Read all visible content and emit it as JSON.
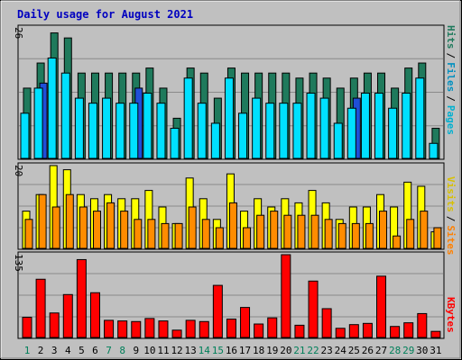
{
  "chart_data": [
    {
      "type": "bar",
      "title": "Daily usage for August 2021",
      "axis_max_label": "26",
      "ylim": [
        0,
        26
      ],
      "legend": [
        "Pages",
        "Files",
        "Hits"
      ],
      "legend_separator": "/",
      "categories": [
        "1",
        "2",
        "3",
        "4",
        "5",
        "6",
        "7",
        "8",
        "9",
        "10",
        "11",
        "12",
        "13",
        "14",
        "15",
        "16",
        "17",
        "18",
        "19",
        "20",
        "21",
        "22",
        "23",
        "24",
        "25",
        "26",
        "27",
        "28",
        "29",
        "30",
        "31"
      ],
      "weekend_days": [
        "1",
        "7",
        "8",
        "14",
        "15",
        "21",
        "22",
        "28",
        "29"
      ],
      "series": [
        {
          "name": "Hits",
          "values": [
            14,
            19,
            25,
            24,
            17,
            17,
            17,
            17,
            17,
            18,
            14,
            8,
            18,
            17,
            12,
            18,
            17,
            17,
            17,
            17,
            16,
            17,
            16,
            14,
            16,
            17,
            17,
            14,
            18,
            19,
            6
          ]
        },
        {
          "name": "Files",
          "values": [
            9,
            14,
            20,
            17,
            12,
            11,
            12,
            11,
            11,
            13,
            11,
            6,
            16,
            11,
            7,
            16,
            9,
            12,
            11,
            11,
            11,
            13,
            12,
            7,
            10,
            13,
            13,
            10,
            13,
            16,
            3
          ]
        },
        {
          "name": "Pages",
          "values": [
            0,
            15,
            0,
            0,
            0,
            0,
            0,
            0,
            14,
            0,
            0,
            0,
            0,
            0,
            0,
            0,
            0,
            0,
            0,
            0,
            0,
            0,
            0,
            0,
            12,
            0,
            0,
            0,
            0,
            0,
            0
          ]
        }
      ],
      "colors": {
        "Hits": "#1f7a5c",
        "Files": "#00e0ff",
        "Pages": "#1f4fd8"
      }
    },
    {
      "type": "bar",
      "axis_max_label": "20",
      "ylim": [
        0,
        20
      ],
      "legend": [
        "Sites",
        "Visits"
      ],
      "legend_separator": "/",
      "series": [
        {
          "name": "Visits",
          "values": [
            9,
            13,
            20,
            19,
            13,
            12,
            13,
            12,
            12,
            14,
            10,
            6,
            17,
            12,
            7,
            18,
            9,
            12,
            10,
            12,
            11,
            14,
            11,
            7,
            10,
            10,
            13,
            10,
            16,
            15,
            4
          ]
        },
        {
          "name": "Sites",
          "values": [
            7,
            13,
            10,
            13,
            10,
            9,
            11,
            9,
            7,
            7,
            6,
            6,
            10,
            7,
            5,
            11,
            5,
            8,
            9,
            8,
            8,
            8,
            7,
            6,
            6,
            6,
            9,
            3,
            7,
            9,
            5
          ]
        }
      ],
      "colors": {
        "Visits": "#ffff00",
        "Sites": "#ff8c00"
      }
    },
    {
      "type": "bar",
      "axis_max_label": "135",
      "ylim": [
        0,
        135
      ],
      "legend": [
        "KBytes"
      ],
      "series": [
        {
          "name": "KBytes",
          "values": [
            33,
            95,
            40,
            70,
            127,
            73,
            28,
            27,
            26,
            31,
            27,
            12,
            28,
            26,
            85,
            30,
            49,
            22,
            32,
            135,
            20,
            92,
            47,
            15,
            21,
            23,
            100,
            18,
            24,
            39,
            10
          ]
        }
      ],
      "colors": {
        "KBytes": "#ff0000"
      }
    }
  ]
}
